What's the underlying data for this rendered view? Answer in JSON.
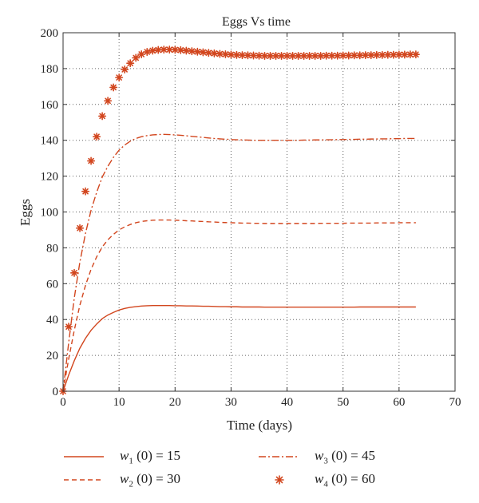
{
  "chart_data": {
    "type": "line",
    "title": "Eggs Vs time",
    "xlabel": "Time (days)",
    "ylabel": "Eggs",
    "xlim": [
      0,
      70
    ],
    "ylim": [
      0,
      200
    ],
    "xticks": [
      0,
      10,
      20,
      30,
      40,
      50,
      60,
      70
    ],
    "yticks": [
      0,
      20,
      40,
      60,
      80,
      100,
      120,
      140,
      160,
      180,
      200
    ],
    "grid": true,
    "legend_position": "bottom",
    "color": "#d2461e",
    "x": [
      0,
      1,
      2,
      3,
      4,
      5,
      6,
      7,
      8,
      9,
      10,
      11,
      12,
      13,
      14,
      15,
      16,
      17,
      18,
      19,
      20,
      21,
      22,
      23,
      24,
      25,
      26,
      27,
      28,
      29,
      30,
      31,
      32,
      33,
      34,
      35,
      36,
      37,
      38,
      39,
      40,
      41,
      42,
      43,
      44,
      45,
      46,
      47,
      48,
      49,
      50,
      51,
      52,
      53,
      54,
      55,
      56,
      57,
      58,
      59,
      60,
      61,
      62,
      63
    ],
    "series": [
      {
        "name": "w1 (0) = 15",
        "label_var": "w",
        "label_sub": "1",
        "label_rest": " (0) = 15",
        "style": "solid",
        "values": [
          0,
          9,
          17,
          24,
          29.5,
          34,
          37.5,
          40.5,
          42.5,
          44,
          45.3,
          46.2,
          46.8,
          47.2,
          47.5,
          47.7,
          47.8,
          47.8,
          47.8,
          47.8,
          47.7,
          47.7,
          47.6,
          47.6,
          47.5,
          47.4,
          47.4,
          47.3,
          47.2,
          47.2,
          47.1,
          47.1,
          47.0,
          47.0,
          47.0,
          47.0,
          46.9,
          46.9,
          46.9,
          46.9,
          46.9,
          46.9,
          46.9,
          46.9,
          46.9,
          46.9,
          46.9,
          46.9,
          46.9,
          46.9,
          46.9,
          46.9,
          46.9,
          47.0,
          47.0,
          47.0,
          47.0,
          47.0,
          47.0,
          47.0,
          47.0,
          47.0,
          47.0,
          47.0
        ]
      },
      {
        "name": "w2 (0) = 30",
        "label_var": "w",
        "label_sub": "2",
        "label_rest": " (0) = 30",
        "style": "dashed",
        "values": [
          0,
          18,
          34,
          48,
          59,
          68,
          75,
          80.5,
          84.5,
          87.5,
          90,
          91.7,
          93,
          94,
          94.7,
          95.1,
          95.4,
          95.5,
          95.5,
          95.5,
          95.4,
          95.3,
          95.1,
          95,
          94.8,
          94.7,
          94.5,
          94.4,
          94.2,
          94.1,
          94,
          93.9,
          93.8,
          93.8,
          93.7,
          93.7,
          93.6,
          93.6,
          93.6,
          93.6,
          93.6,
          93.6,
          93.6,
          93.6,
          93.6,
          93.6,
          93.7,
          93.7,
          93.7,
          93.7,
          93.7,
          93.8,
          93.8,
          93.8,
          93.8,
          93.8,
          93.9,
          93.9,
          93.9,
          93.9,
          94,
          94,
          94,
          94
        ]
      },
      {
        "name": "w3 (0) = 45",
        "label_var": "w",
        "label_sub": "3",
        "label_rest": " (0) = 45",
        "style": "dashdot",
        "values": [
          0,
          27,
          52,
          72,
          88,
          101,
          111,
          119.5,
          125.5,
          130.5,
          134.5,
          137.3,
          139.5,
          141,
          142,
          142.6,
          143,
          143.2,
          143.3,
          143.2,
          143,
          142.8,
          142.5,
          142.2,
          141.9,
          141.6,
          141.3,
          141,
          140.8,
          140.6,
          140.4,
          140.3,
          140.2,
          140.1,
          140,
          140,
          140,
          140,
          140,
          140,
          140,
          140,
          140,
          140.1,
          140.1,
          140.2,
          140.2,
          140.3,
          140.3,
          140.4,
          140.4,
          140.5,
          140.5,
          140.6,
          140.6,
          140.7,
          140.7,
          140.8,
          140.8,
          140.9,
          140.9,
          141,
          141,
          141
        ]
      },
      {
        "name": "w4 (0) = 60",
        "label_var": "w",
        "label_sub": "4",
        "label_rest": " (0) = 60",
        "style": "markers",
        "values": [
          0,
          36,
          66,
          91,
          111.5,
          128.5,
          142,
          153.5,
          162,
          169.5,
          175,
          179.5,
          183,
          186,
          188,
          189.3,
          190,
          190.4,
          190.6,
          190.6,
          190.5,
          190.3,
          190,
          189.7,
          189.4,
          189.1,
          188.8,
          188.5,
          188.2,
          188,
          187.8,
          187.6,
          187.5,
          187.4,
          187.3,
          187.2,
          187.1,
          187.1,
          187.1,
          187.1,
          187.1,
          187.1,
          187.1,
          187.1,
          187.1,
          187.1,
          187.1,
          187.2,
          187.2,
          187.2,
          187.3,
          187.3,
          187.4,
          187.4,
          187.5,
          187.5,
          187.6,
          187.6,
          187.7,
          187.7,
          187.8,
          187.8,
          187.9,
          187.9
        ]
      }
    ]
  }
}
